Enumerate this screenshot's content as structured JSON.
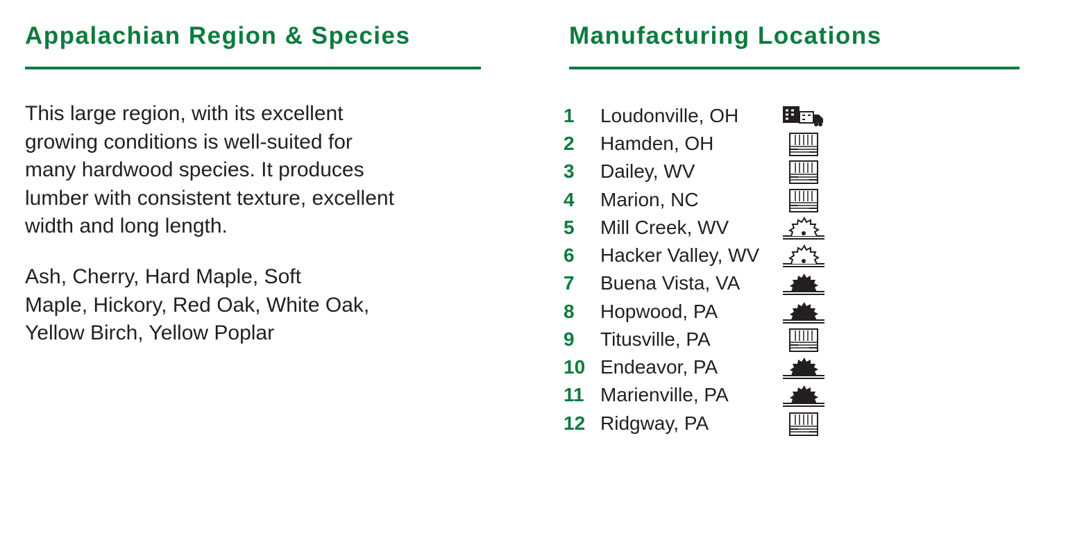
{
  "left": {
    "title": "Appalachian Region & Species",
    "paragraphs": [
      [
        "This large region, with its excellent",
        "growing conditions is well-suited for",
        "many hardwood species. It produces",
        "lumber with consistent texture, excellent",
        "width and long length."
      ],
      [
        "Ash, Cherry, Hard Maple, Soft",
        "Maple, Hickory, Red Oak, White Oak,",
        "Yellow Birch, Yellow Poplar"
      ]
    ]
  },
  "right": {
    "title": "Manufacturing Locations",
    "locations": [
      {
        "number": 1,
        "name": "Loudonville, OH"
      },
      {
        "number": 2,
        "name": "Hamden, OH"
      },
      {
        "number": 3,
        "name": "Dailey, WV"
      },
      {
        "number": 4,
        "name": "Marion, NC"
      },
      {
        "number": 5,
        "name": "Mill Creek, WV"
      },
      {
        "number": 6,
        "name": "Hacker Valley, WV"
      },
      {
        "number": 7,
        "name": "Buena Vista, VA"
      },
      {
        "number": 8,
        "name": "Hopwood, PA"
      },
      {
        "number": 9,
        "name": "Titusville, PA"
      },
      {
        "number": 10,
        "name": "Endeavor, PA"
      },
      {
        "number": 11,
        "name": "Marienville, PA"
      },
      {
        "number": 12,
        "name": "Ridgway, PA"
      }
    ]
  }
}
